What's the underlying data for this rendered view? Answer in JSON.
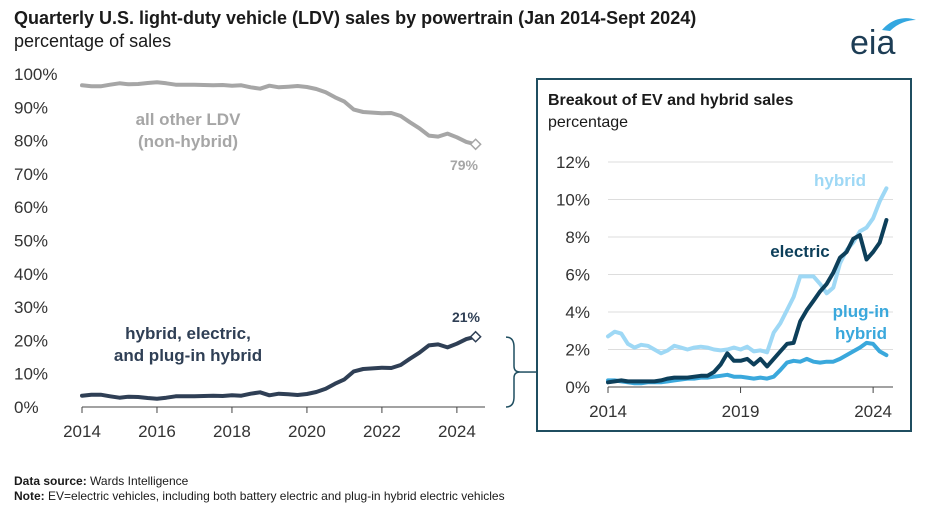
{
  "header": {
    "title": "Quarterly U.S. light-duty vehicle (LDV) sales by powertrain (Jan 2014-Sept 2024)",
    "subtitle": "percentage of sales",
    "logo_text": "eia"
  },
  "inset": {
    "title": "Breakout of EV and hybrid sales",
    "subtitle": "percentage"
  },
  "footer": {
    "source_label": "Data source:",
    "source_text": "Wards Intelligence",
    "note_label": "Note:",
    "note_text": "EV=electric vehicles, including both battery electric and plug-in hybrid electric vehicles"
  },
  "colors": {
    "other": "#a6a6a6",
    "hev_total": "#2f3f55",
    "hybrid": "#9ed8f5",
    "electric": "#0d3f5a",
    "plugin": "#3aa8dc",
    "grid": "#dddddd",
    "frame": "#1f4e60"
  },
  "chart_data": [
    {
      "type": "line",
      "xlim": [
        2014,
        2024.75
      ],
      "ylim": [
        0,
        100
      ],
      "x_ticks": [
        "2014",
        "2016",
        "2018",
        "2020",
        "2022",
        "2024"
      ],
      "y_ticks": [
        "0%",
        "10%",
        "20%",
        "30%",
        "40%",
        "50%",
        "60%",
        "70%",
        "80%",
        "90%",
        "100%"
      ],
      "grid": false,
      "series": [
        {
          "key": "other",
          "name": "all other LDV (non-hybrid)",
          "label_lines": [
            "all other LDV",
            "(non-hybrid)"
          ],
          "end_label": "79%",
          "color": "#a6a6a6",
          "points": [
            [
              2014.0,
              96.6
            ],
            [
              2014.25,
              96.3
            ],
            [
              2014.5,
              96.3
            ],
            [
              2014.75,
              96.8
            ],
            [
              2015.0,
              97.2
            ],
            [
              2015.25,
              96.9
            ],
            [
              2015.5,
              97.0
            ],
            [
              2015.75,
              97.3
            ],
            [
              2016.0,
              97.5
            ],
            [
              2016.25,
              97.2
            ],
            [
              2016.5,
              96.8
            ],
            [
              2016.75,
              96.8
            ],
            [
              2017.0,
              96.8
            ],
            [
              2017.25,
              96.7
            ],
            [
              2017.5,
              96.6
            ],
            [
              2017.75,
              96.7
            ],
            [
              2018.0,
              96.5
            ],
            [
              2018.25,
              96.6
            ],
            [
              2018.5,
              96.0
            ],
            [
              2018.75,
              95.6
            ],
            [
              2019.0,
              96.5
            ],
            [
              2019.25,
              96.0
            ],
            [
              2019.5,
              96.2
            ],
            [
              2019.75,
              96.4
            ],
            [
              2020.0,
              96.1
            ],
            [
              2020.25,
              95.5
            ],
            [
              2020.5,
              94.5
            ],
            [
              2020.75,
              93.0
            ],
            [
              2021.0,
              91.7
            ],
            [
              2021.25,
              89.3
            ],
            [
              2021.5,
              88.6
            ],
            [
              2021.75,
              88.4
            ],
            [
              2022.0,
              88.2
            ],
            [
              2022.25,
              88.3
            ],
            [
              2022.5,
              87.4
            ],
            [
              2022.75,
              85.5
            ],
            [
              2023.0,
              83.7
            ],
            [
              2023.25,
              81.5
            ],
            [
              2023.5,
              81.2
            ],
            [
              2023.75,
              82.1
            ],
            [
              2024.0,
              81.0
            ],
            [
              2024.25,
              79.6
            ],
            [
              2024.5,
              78.9
            ]
          ]
        },
        {
          "key": "hev_total",
          "name": "hybrid, electric, and plug-in hybrid",
          "label_lines": [
            "hybrid, electric,",
            "and plug-in hybrid"
          ],
          "end_label": "21%",
          "color": "#2f3f55",
          "points": [
            [
              2014.0,
              3.4
            ],
            [
              2014.25,
              3.7
            ],
            [
              2014.5,
              3.7
            ],
            [
              2014.75,
              3.2
            ],
            [
              2015.0,
              2.8
            ],
            [
              2015.25,
              3.1
            ],
            [
              2015.5,
              3.0
            ],
            [
              2015.75,
              2.7
            ],
            [
              2016.0,
              2.5
            ],
            [
              2016.25,
              2.8
            ],
            [
              2016.5,
              3.2
            ],
            [
              2016.75,
              3.2
            ],
            [
              2017.0,
              3.2
            ],
            [
              2017.25,
              3.3
            ],
            [
              2017.5,
              3.4
            ],
            [
              2017.75,
              3.3
            ],
            [
              2018.0,
              3.5
            ],
            [
              2018.25,
              3.4
            ],
            [
              2018.5,
              4.0
            ],
            [
              2018.75,
              4.4
            ],
            [
              2019.0,
              3.5
            ],
            [
              2019.25,
              4.0
            ],
            [
              2019.5,
              3.8
            ],
            [
              2019.75,
              3.6
            ],
            [
              2020.0,
              3.9
            ],
            [
              2020.25,
              4.5
            ],
            [
              2020.5,
              5.5
            ],
            [
              2020.75,
              7.0
            ],
            [
              2021.0,
              8.3
            ],
            [
              2021.25,
              10.7
            ],
            [
              2021.5,
              11.4
            ],
            [
              2021.75,
              11.6
            ],
            [
              2022.0,
              11.8
            ],
            [
              2022.25,
              11.7
            ],
            [
              2022.5,
              12.6
            ],
            [
              2022.75,
              14.5
            ],
            [
              2023.0,
              16.3
            ],
            [
              2023.25,
              18.5
            ],
            [
              2023.5,
              18.8
            ],
            [
              2023.75,
              17.9
            ],
            [
              2024.0,
              19.0
            ],
            [
              2024.25,
              20.4
            ],
            [
              2024.5,
              21.1
            ]
          ]
        }
      ]
    },
    {
      "type": "line",
      "title": "Breakout of EV and hybrid sales",
      "subtitle": "percentage",
      "xlim": [
        2014,
        2024.75
      ],
      "ylim": [
        0,
        12
      ],
      "x_ticks": [
        "2014",
        "2019",
        "2024"
      ],
      "y_ticks": [
        "0%",
        "2%",
        "4%",
        "6%",
        "8%",
        "10%",
        "12%"
      ],
      "grid": true,
      "series": [
        {
          "key": "hybrid",
          "name": "hybrid",
          "label_lines": [
            "hybrid"
          ],
          "color": "#9ed8f5",
          "points": [
            [
              2014.0,
              2.7
            ],
            [
              2014.25,
              2.95
            ],
            [
              2014.5,
              2.85
            ],
            [
              2014.75,
              2.3
            ],
            [
              2015.0,
              2.1
            ],
            [
              2015.25,
              2.25
            ],
            [
              2015.5,
              2.2
            ],
            [
              2015.75,
              2.0
            ],
            [
              2016.0,
              1.8
            ],
            [
              2016.25,
              1.95
            ],
            [
              2016.5,
              2.2
            ],
            [
              2016.75,
              2.1
            ],
            [
              2017.0,
              2.0
            ],
            [
              2017.25,
              2.1
            ],
            [
              2017.5,
              2.15
            ],
            [
              2017.75,
              2.1
            ],
            [
              2018.0,
              2.0
            ],
            [
              2018.25,
              1.95
            ],
            [
              2018.5,
              2.0
            ],
            [
              2018.75,
              2.1
            ],
            [
              2019.0,
              2.0
            ],
            [
              2019.25,
              2.15
            ],
            [
              2019.5,
              1.9
            ],
            [
              2019.75,
              1.95
            ],
            [
              2020.0,
              1.85
            ],
            [
              2020.25,
              2.9
            ],
            [
              2020.5,
              3.4
            ],
            [
              2020.75,
              4.1
            ],
            [
              2021.0,
              4.8
            ],
            [
              2021.25,
              5.9
            ],
            [
              2021.5,
              5.9
            ],
            [
              2021.75,
              5.9
            ],
            [
              2022.0,
              5.5
            ],
            [
              2022.25,
              5.0
            ],
            [
              2022.5,
              5.3
            ],
            [
              2022.75,
              6.6
            ],
            [
              2023.0,
              7.3
            ],
            [
              2023.25,
              7.7
            ],
            [
              2023.5,
              8.3
            ],
            [
              2023.75,
              8.5
            ],
            [
              2024.0,
              9.0
            ],
            [
              2024.25,
              9.9
            ],
            [
              2024.5,
              10.6
            ]
          ]
        },
        {
          "key": "electric",
          "name": "electric",
          "label_lines": [
            "electric"
          ],
          "color": "#0d3f5a",
          "points": [
            [
              2014.0,
              0.25
            ],
            [
              2014.25,
              0.3
            ],
            [
              2014.5,
              0.35
            ],
            [
              2014.75,
              0.3
            ],
            [
              2015.0,
              0.3
            ],
            [
              2015.25,
              0.3
            ],
            [
              2015.5,
              0.3
            ],
            [
              2015.75,
              0.3
            ],
            [
              2016.0,
              0.35
            ],
            [
              2016.25,
              0.45
            ],
            [
              2016.5,
              0.5
            ],
            [
              2016.75,
              0.5
            ],
            [
              2017.0,
              0.5
            ],
            [
              2017.25,
              0.55
            ],
            [
              2017.5,
              0.6
            ],
            [
              2017.75,
              0.6
            ],
            [
              2018.0,
              0.8
            ],
            [
              2018.25,
              1.2
            ],
            [
              2018.5,
              1.8
            ],
            [
              2018.75,
              1.4
            ],
            [
              2019.0,
              1.4
            ],
            [
              2019.25,
              1.5
            ],
            [
              2019.5,
              1.2
            ],
            [
              2019.75,
              1.5
            ],
            [
              2020.0,
              1.1
            ],
            [
              2020.25,
              1.5
            ],
            [
              2020.5,
              1.9
            ],
            [
              2020.75,
              2.3
            ],
            [
              2021.0,
              2.35
            ],
            [
              2021.25,
              3.5
            ],
            [
              2021.5,
              4.1
            ],
            [
              2021.75,
              4.6
            ],
            [
              2022.0,
              5.1
            ],
            [
              2022.25,
              5.5
            ],
            [
              2022.5,
              6.1
            ],
            [
              2022.75,
              6.9
            ],
            [
              2023.0,
              7.2
            ],
            [
              2023.25,
              7.9
            ],
            [
              2023.5,
              8.1
            ],
            [
              2023.75,
              6.8
            ],
            [
              2024.0,
              7.2
            ],
            [
              2024.25,
              7.7
            ],
            [
              2024.5,
              8.9
            ]
          ]
        },
        {
          "key": "plugin",
          "name": "plug-in hybrid",
          "label_lines": [
            "plug-in",
            "hybrid"
          ],
          "color": "#3aa8dc",
          "points": [
            [
              2014.0,
              0.35
            ],
            [
              2014.25,
              0.35
            ],
            [
              2014.5,
              0.3
            ],
            [
              2014.75,
              0.25
            ],
            [
              2015.0,
              0.2
            ],
            [
              2015.25,
              0.2
            ],
            [
              2015.5,
              0.25
            ],
            [
              2015.75,
              0.25
            ],
            [
              2016.0,
              0.25
            ],
            [
              2016.25,
              0.3
            ],
            [
              2016.5,
              0.35
            ],
            [
              2016.75,
              0.4
            ],
            [
              2017.0,
              0.45
            ],
            [
              2017.25,
              0.45
            ],
            [
              2017.5,
              0.5
            ],
            [
              2017.75,
              0.5
            ],
            [
              2018.0,
              0.55
            ],
            [
              2018.25,
              0.6
            ],
            [
              2018.5,
              0.65
            ],
            [
              2018.75,
              0.55
            ],
            [
              2019.0,
              0.55
            ],
            [
              2019.25,
              0.5
            ],
            [
              2019.5,
              0.45
            ],
            [
              2019.75,
              0.5
            ],
            [
              2020.0,
              0.45
            ],
            [
              2020.25,
              0.55
            ],
            [
              2020.5,
              0.9
            ],
            [
              2020.75,
              1.3
            ],
            [
              2021.0,
              1.4
            ],
            [
              2021.25,
              1.35
            ],
            [
              2021.5,
              1.5
            ],
            [
              2021.75,
              1.35
            ],
            [
              2022.0,
              1.3
            ],
            [
              2022.25,
              1.35
            ],
            [
              2022.5,
              1.35
            ],
            [
              2022.75,
              1.5
            ],
            [
              2023.0,
              1.7
            ],
            [
              2023.25,
              1.9
            ],
            [
              2023.5,
              2.1
            ],
            [
              2023.75,
              2.35
            ],
            [
              2024.0,
              2.3
            ],
            [
              2024.25,
              1.9
            ],
            [
              2024.5,
              1.7
            ]
          ]
        }
      ]
    }
  ]
}
